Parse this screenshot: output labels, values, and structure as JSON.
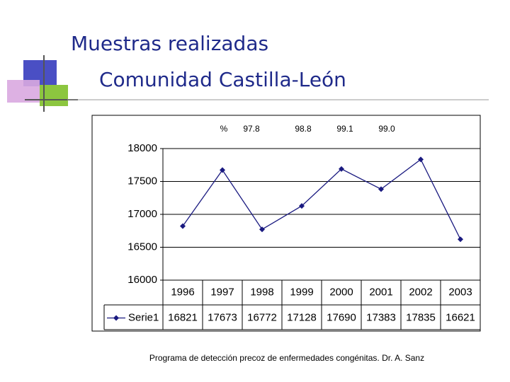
{
  "header": {
    "title": "Muestras realizadas",
    "subtitle": "Comunidad Castilla-León"
  },
  "chart_data": {
    "type": "line",
    "annotations": [
      "%",
      "97.8",
      "98.8",
      "99.1",
      "99.0"
    ],
    "categories": [
      "1996",
      "1997",
      "1998",
      "1999",
      "2000",
      "2001",
      "2002",
      "2003"
    ],
    "series": [
      {
        "name": "Serie1",
        "color": "#1a1a80",
        "values": [
          16821,
          17673,
          16772,
          17128,
          17690,
          17383,
          17835,
          16621
        ]
      }
    ],
    "ylim": [
      16000,
      18000
    ],
    "yticks": [
      16000,
      16500,
      17000,
      17500,
      18000
    ],
    "grid": true,
    "data_table": true
  },
  "footer": "Programa de detección precoz de enfermedades congénitas. Dr. A. Sanz"
}
